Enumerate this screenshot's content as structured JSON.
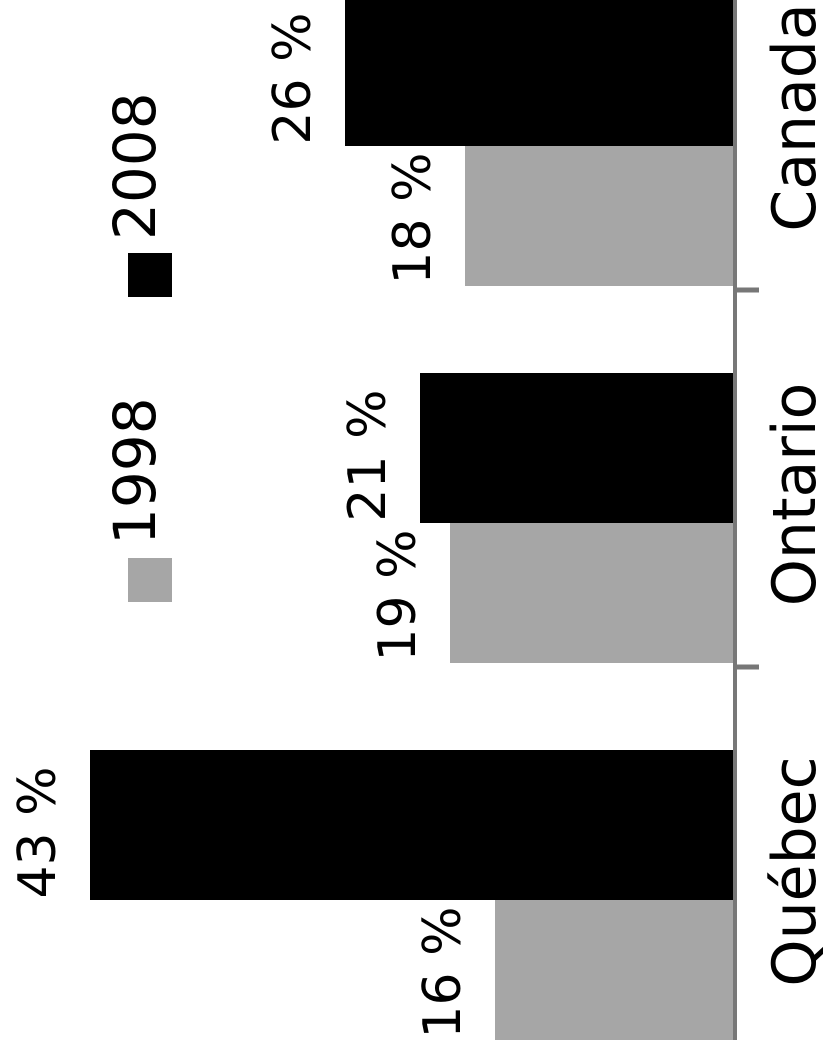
{
  "chart_data": {
    "type": "bar",
    "orientation": "rotated-90",
    "categories": [
      "Québec",
      "Ontario",
      "Canada"
    ],
    "series": [
      {
        "name": "1998",
        "values": [
          16,
          19,
          18
        ],
        "labels": [
          "16 %",
          "19 %",
          "18 %"
        ],
        "color": "#a6a6a6"
      },
      {
        "name": "2008",
        "values": [
          43,
          21,
          26
        ],
        "labels": [
          "43 %",
          "21 %",
          "26 %"
        ],
        "color": "#000000"
      }
    ],
    "ylim": [
      0,
      45
    ],
    "grid": false,
    "legend_position": "top"
  }
}
